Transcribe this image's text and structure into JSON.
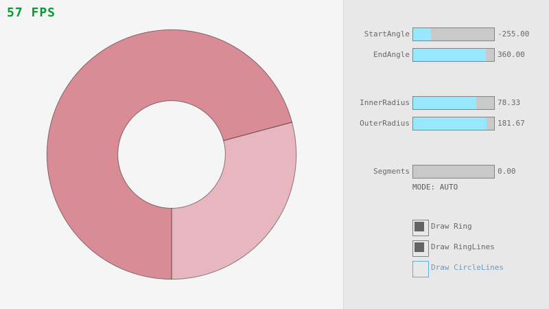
{
  "fps": {
    "label": "57 FPS",
    "color": "#009E2F"
  },
  "panel": {
    "sliders": [
      {
        "label": "StartAngle",
        "value_text": "-255.00",
        "fill_pct": 21.7
      },
      {
        "label": "EndAngle",
        "value_text": "360.00",
        "fill_pct": 90.0
      },
      {
        "label": "InnerRadius",
        "value_text": "78.33",
        "fill_pct": 78.3
      },
      {
        "label": "OuterRadius",
        "value_text": "181.67",
        "fill_pct": 90.8
      },
      {
        "label": "Segments",
        "value_text": "0.00",
        "fill_pct": 0
      }
    ],
    "mode_text": "MODE: AUTO",
    "checkboxes": [
      {
        "label": "Draw Ring",
        "checked": true,
        "focused": false
      },
      {
        "label": "Draw RingLines",
        "checked": true,
        "focused": false
      },
      {
        "label": "Draw CircleLines",
        "checked": false,
        "focused": true
      }
    ]
  },
  "chart_data": {
    "type": "ring",
    "ring": {
      "start_angle": -255,
      "end_angle": 360,
      "inner_radius": 78.33,
      "outer_radius": 181.67,
      "single_color": "#E7B6BE",
      "double_color": "#D98C96",
      "line_color": "rgba(0,0,0,0.45)"
    }
  },
  "colors": {
    "background": "#F5F5F5",
    "panel_background": "#E8E8E8",
    "panel_divider": "#DADADA",
    "slider_border": "#838383",
    "slider_track": "#C9C9C9",
    "slider_fill": "#97E8FF",
    "text_normal": "#686868",
    "text_focused": "#6C9BBC",
    "border_focused": "#5BB2D9",
    "check_mark": "#646464"
  }
}
